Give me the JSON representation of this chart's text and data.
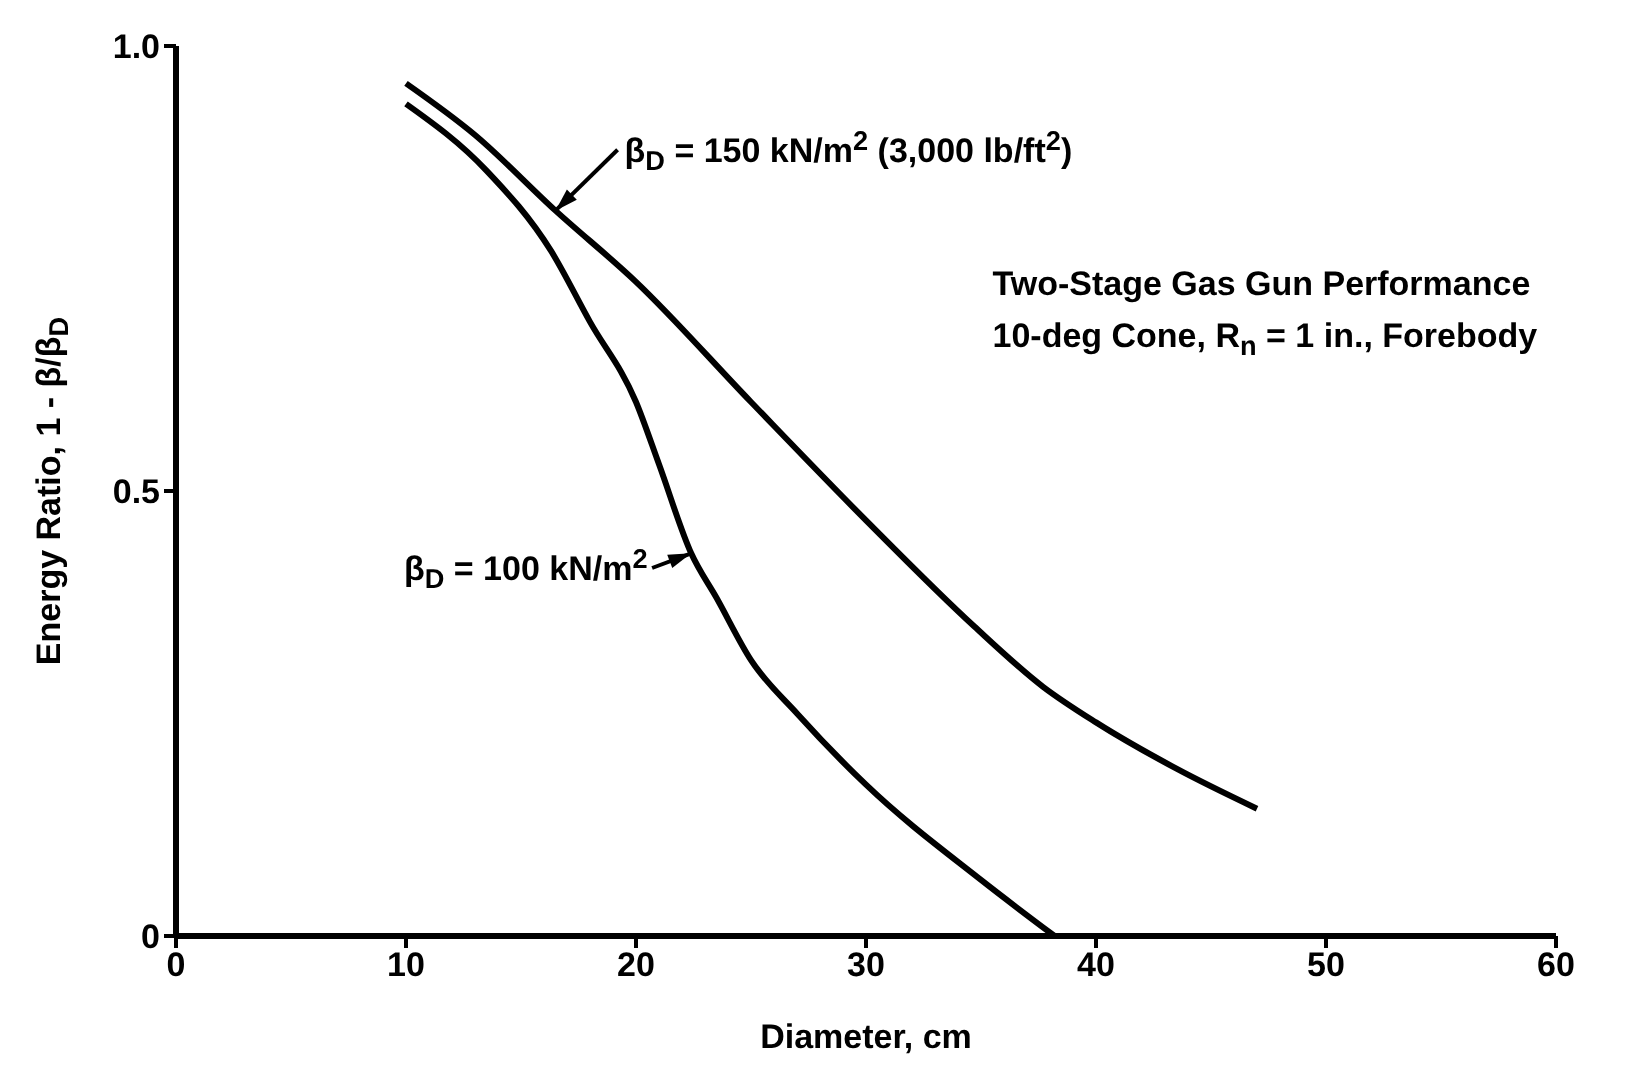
{
  "chart_data": {
    "type": "line",
    "xlabel": "Diameter, cm",
    "ylabel": "Energy Ratio, 1 - β/β$_{D}$",
    "xlim": [
      0,
      60
    ],
    "xticks": [
      0,
      10,
      20,
      30,
      40,
      50,
      60
    ],
    "ylim": [
      0,
      1
    ],
    "yticks": [
      0,
      0.5,
      {
        "value": 1,
        "label": "1.0"
      }
    ],
    "marker": "none",
    "line_style": "solid",
    "annotations": [
      "Two-Stage Gas Gun Performance",
      "10-deg Cone, R$_{n}$ = 1 in., Forebody"
    ],
    "series": [
      {
        "name": "β$_{D}$ = 150 kN/m$^{2}$ (3,000 lb/ft$^{2}$)",
        "color": "#000000",
        "x": [
          10,
          13,
          16.5,
          20,
          25,
          30,
          34.7,
          37.7,
          40,
          43.5,
          47
        ],
        "values": [
          0.958,
          0.9,
          0.815,
          0.735,
          0.6,
          0.467,
          0.348,
          0.28,
          0.24,
          0.188,
          0.143
        ]
      },
      {
        "name": "β$_{D}$ = 100 kN/m$^{2}$",
        "color": "#000000",
        "x": [
          10,
          13.5,
          16.3,
          18,
          20,
          21,
          22.4,
          23.5,
          25,
          27,
          30,
          35,
          38.2
        ],
        "values": [
          0.935,
          0.86,
          0.77,
          0.69,
          0.6,
          0.53,
          0.43,
          0.38,
          0.31,
          0.25,
          0.17,
          0.063,
          0
        ]
      }
    ]
  }
}
